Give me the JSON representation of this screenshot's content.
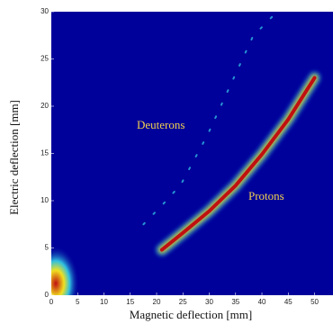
{
  "chart_data": {
    "type": "density",
    "xlabel": "Magnetic deflection [mm]",
    "ylabel": "Electric deflection [mm]",
    "annotations": [
      "Deuterons",
      "Protons"
    ],
    "background": "#00009a",
    "xlim": [
      0,
      53.5
    ],
    "xticks": [
      0,
      5,
      10,
      15,
      20,
      25,
      30,
      35,
      40,
      45,
      50
    ],
    "ylim": [
      0,
      30
    ],
    "yticks": [
      0,
      5,
      10,
      15,
      20,
      25,
      30
    ],
    "series": [
      {
        "color": "#c01010",
        "x": [
          21,
          25,
          30,
          35,
          40,
          45,
          50
        ],
        "y": [
          4.8,
          6.6,
          8.9,
          11.6,
          14.9,
          18.6,
          23
        ]
      },
      {
        "color": "#33c4e6",
        "x": [
          17.5,
          21,
          24.6,
          29.7,
          34,
          38.3,
          42
        ],
        "y": [
          7.5,
          9.5,
          11.7,
          17,
          22.2,
          27.4,
          29.5
        ]
      }
    ]
  }
}
